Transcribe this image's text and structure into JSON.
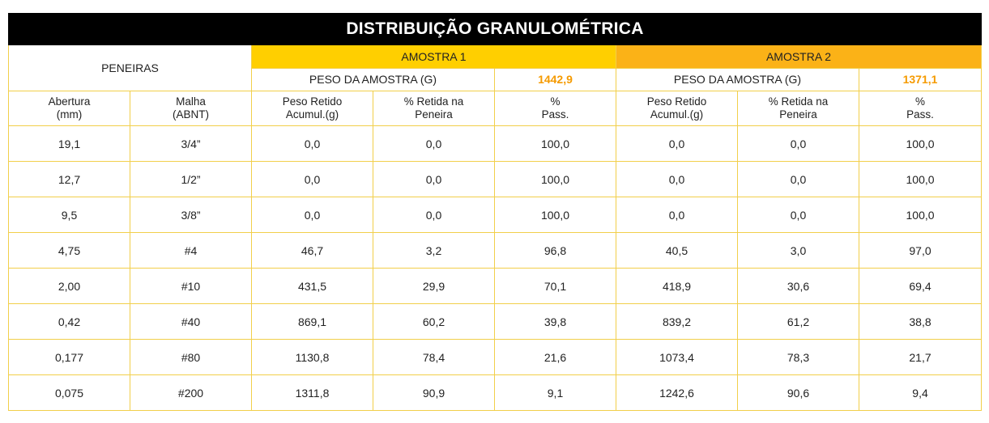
{
  "title": "DISTRIBUIÇÃO GRANULOMÉTRICA",
  "peneiras_label": "PENEIRAS",
  "amostra1": {
    "label": "AMOSTRA 1",
    "peso_label": "PESO DA AMOSTRA (G)",
    "peso_value": "1442,9"
  },
  "amostra2": {
    "label": "AMOSTRA 2",
    "peso_label": "PESO DA AMOSTRA (G)",
    "peso_value": "1371,1"
  },
  "columns": {
    "abertura": [
      "Abertura",
      "(mm)"
    ],
    "malha": [
      "Malha",
      "(ABNT)"
    ],
    "peso_retido": [
      "Peso Retido",
      "Acumul.(g)"
    ],
    "pct_retida": [
      "% Retida na",
      "Peneira"
    ],
    "pct_pass": [
      "%",
      "Pass."
    ]
  },
  "colors": {
    "title_bg": "#000000",
    "amostra1_bg": "#ffcf00",
    "amostra2_bg": "#fbb217",
    "peso_value": "#f59a00",
    "border": "#f2cf4a"
  },
  "rows": [
    [
      "19,1",
      "3/4”",
      "0,0",
      "0,0",
      "100,0",
      "0,0",
      "0,0",
      "100,0"
    ],
    [
      "12,7",
      "1/2”",
      "0,0",
      "0,0",
      "100,0",
      "0,0",
      "0,0",
      "100,0"
    ],
    [
      "9,5",
      "3/8”",
      "0,0",
      "0,0",
      "100,0",
      "0,0",
      "0,0",
      "100,0"
    ],
    [
      "4,75",
      "#4",
      "46,7",
      "3,2",
      "96,8",
      "40,5",
      "3,0",
      "97,0"
    ],
    [
      "2,00",
      "#10",
      "431,5",
      "29,9",
      "70,1",
      "418,9",
      "30,6",
      "69,4"
    ],
    [
      "0,42",
      "#40",
      "869,1",
      "60,2",
      "39,8",
      "839,2",
      "61,2",
      "38,8"
    ],
    [
      "0,177",
      "#80",
      "1130,8",
      "78,4",
      "21,6",
      "1073,4",
      "78,3",
      "21,7"
    ],
    [
      "0,075",
      "#200",
      "1311,8",
      "90,9",
      "9,1",
      "1242,6",
      "90,6",
      "9,4"
    ]
  ]
}
